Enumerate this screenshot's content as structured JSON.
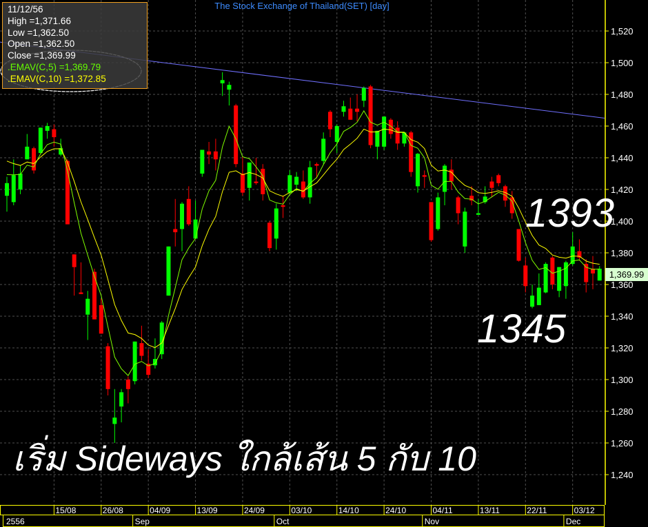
{
  "title": "The Stock Exchange of Thailand(SET) [day]",
  "info_box": {
    "date": "11/12/56",
    "high": "High  =1,371.66",
    "low": "Low  =1,362.50",
    "open": "Open  =1,362.50",
    "close": "Close  =1,369.99",
    "ema5": ".EMAV(C,5)   =1,369.79",
    "ema10": ".EMAV(C,10)   =1,372.85"
  },
  "last_price_label": "1,369.99",
  "annotations": {
    "high_mark": "1393",
    "low_mark": "1345",
    "caption": "เริ่ม Sideways ใกล้เส้น 5 กับ 10"
  },
  "chart_data": {
    "type": "candlestick",
    "title": "The Stock Exchange of Thailand(SET) [day]",
    "overlays": [
      {
        "name": "EMAV(C,5)",
        "color": "#80ff00"
      },
      {
        "name": "EMAV(C,10)",
        "color": "#ffff00"
      }
    ],
    "trendline": {
      "start": 1513,
      "end": 1465,
      "color": "#7070ff"
    },
    "ylim": [
      1230,
      1535
    ],
    "yticks": [
      "1,240",
      "1,260",
      "1,280",
      "1,300",
      "1,320",
      "1,340",
      "1,360",
      "1,380",
      "1,400",
      "1,420",
      "1,440",
      "1,460",
      "1,480",
      "1,500",
      "1,520"
    ],
    "xticks": [
      "15/08",
      "26/08",
      "04/09",
      "13/09",
      "24/09",
      "03/10",
      "14/10",
      "24/10",
      "04/11",
      "13/11",
      "22/11",
      "03/12"
    ],
    "xmonths": [
      "2556",
      "Sep",
      "Oct",
      "Nov",
      "Dec"
    ],
    "grid": true,
    "colors": {
      "up": "#00ff00",
      "down": "#ff0000",
      "axis": "#ffff00",
      "grid": "#505050"
    },
    "ohlc": [
      [
        1416,
        1428,
        1406,
        1424
      ],
      [
        1412,
        1439,
        1410,
        1429
      ],
      [
        1420,
        1435,
        1417,
        1430
      ],
      [
        1439,
        1455,
        1439,
        1447
      ],
      [
        1446,
        1447,
        1430,
        1432
      ],
      [
        1443,
        1459,
        1443,
        1459
      ],
      [
        1457,
        1462,
        1452,
        1460
      ],
      [
        1458,
        1461,
        1447,
        1453
      ],
      [
        1442,
        1452,
        1441,
        1446
      ],
      [
        1438,
        1439,
        1398,
        1398
      ],
      [
        1379,
        1379,
        1353,
        1371
      ],
      [
        1355,
        1374,
        1354,
        1354
      ],
      [
        1341,
        1356,
        1325,
        1351
      ],
      [
        1368,
        1370,
        1338,
        1338
      ],
      [
        1347,
        1351,
        1329,
        1329
      ],
      [
        1321,
        1323,
        1290,
        1294
      ],
      [
        1272,
        1294,
        1260,
        1276
      ],
      [
        1283,
        1294,
        1273,
        1292
      ],
      [
        1300,
        1302,
        1285,
        1294
      ],
      [
        1299,
        1324,
        1297,
        1324
      ],
      [
        1323,
        1334,
        1312,
        1315
      ],
      [
        1310,
        1319,
        1301,
        1303
      ],
      [
        1309,
        1326,
        1307,
        1313
      ],
      [
        1316,
        1337,
        1313,
        1336
      ],
      [
        1353,
        1384,
        1353,
        1384
      ],
      [
        1395,
        1414,
        1384,
        1393
      ],
      [
        1395,
        1412,
        1381,
        1411
      ],
      [
        1414,
        1422,
        1397,
        1398
      ],
      [
        1389,
        1413,
        1389,
        1401
      ],
      [
        1430,
        1445,
        1428,
        1445
      ],
      [
        1444,
        1450,
        1436,
        1442
      ],
      [
        1444,
        1452,
        1432,
        1439
      ],
      [
        1487,
        1494,
        1479,
        1489
      ],
      [
        1483,
        1488,
        1473,
        1486
      ],
      [
        1473,
        1474,
        1434,
        1436
      ],
      [
        1430,
        1441,
        1416,
        1418
      ],
      [
        1421,
        1437,
        1413,
        1437
      ],
      [
        1425,
        1440,
        1423,
        1424
      ],
      [
        1433,
        1436,
        1413,
        1417
      ],
      [
        1399,
        1400,
        1381,
        1383
      ],
      [
        1389,
        1411,
        1382,
        1408
      ],
      [
        1410,
        1416,
        1402,
        1409
      ],
      [
        1418,
        1432,
        1417,
        1429
      ],
      [
        1423,
        1431,
        1419,
        1428
      ],
      [
        1425,
        1432,
        1414,
        1415
      ],
      [
        1415,
        1438,
        1411,
        1434
      ],
      [
        1436,
        1437,
        1427,
        1435
      ],
      [
        1438,
        1456,
        1436,
        1452
      ],
      [
        1469,
        1470,
        1453,
        1458
      ],
      [
        1450,
        1461,
        1443,
        1460
      ],
      [
        1469,
        1476,
        1466,
        1472.5
      ],
      [
        1471,
        1478,
        1464,
        1464
      ],
      [
        1471,
        1480,
        1463,
        1469
      ],
      [
        1476,
        1485,
        1472,
        1484
      ],
      [
        1485,
        1486,
        1446,
        1448
      ],
      [
        1447,
        1457,
        1439,
        1457
      ],
      [
        1447,
        1466,
        1445,
        1466
      ],
      [
        1464,
        1465,
        1452,
        1455
      ],
      [
        1459,
        1463,
        1445,
        1449
      ],
      [
        1449,
        1456,
        1447,
        1456
      ],
      [
        1456,
        1457,
        1428,
        1431
      ],
      [
        1422,
        1443,
        1418,
        1442.5
      ],
      [
        1429,
        1432,
        1421,
        1428
      ],
      [
        1412,
        1412,
        1387,
        1388
      ],
      [
        1395,
        1418,
        1394,
        1415
      ],
      [
        1418.5,
        1436,
        1410,
        1435
      ],
      [
        1432.5,
        1439,
        1420,
        1425
      ],
      [
        1415,
        1416,
        1398,
        1405
      ],
      [
        1384,
        1408.5,
        1380,
        1406
      ],
      [
        1416,
        1422,
        1410,
        1413
      ],
      [
        1404,
        1414,
        1404,
        1405
      ],
      [
        1412,
        1422,
        1411,
        1415.5
      ],
      [
        1425,
        1428,
        1415,
        1421
      ],
      [
        1429,
        1430,
        1422,
        1424
      ],
      [
        1422,
        1423,
        1409,
        1413
      ],
      [
        1415,
        1419,
        1401.5,
        1405
      ],
      [
        1395,
        1395,
        1374.5,
        1375
      ],
      [
        1372,
        1377,
        1355,
        1359
      ],
      [
        1346,
        1360,
        1345,
        1353
      ],
      [
        1347,
        1367,
        1347,
        1358
      ],
      [
        1355,
        1374,
        1354.5,
        1373
      ],
      [
        1377,
        1378,
        1357,
        1360
      ],
      [
        1356,
        1371,
        1352,
        1371
      ],
      [
        1359,
        1375,
        1351,
        1374
      ],
      [
        1373,
        1393,
        1372,
        1384
      ],
      [
        1381,
        1388.5,
        1375,
        1377
      ],
      [
        1373,
        1376,
        1355,
        1361.5
      ],
      [
        1370,
        1378,
        1357,
        1367
      ],
      [
        1362.5,
        1371.66,
        1362.5,
        1369.99
      ]
    ]
  }
}
